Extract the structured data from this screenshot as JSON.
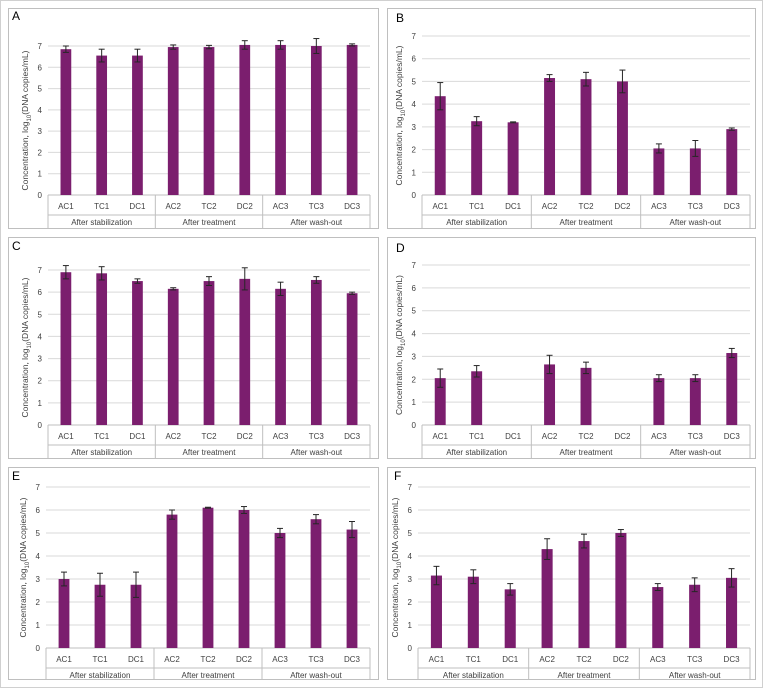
{
  "style": {
    "bar_color": "#7B1E6E",
    "grid_color": "#d9d9d9",
    "frame_color": "#bfbfbf"
  },
  "chart_data": [
    {
      "panel": "A",
      "type": "bar",
      "categories": [
        "AC1",
        "TC1",
        "DC1",
        "AC2",
        "TC2",
        "DC2",
        "AC3",
        "TC3",
        "DC3"
      ],
      "groups": [
        "After stabilization",
        "After treatment",
        "After wash-out"
      ],
      "values": [
        6.85,
        6.55,
        6.55,
        6.95,
        6.95,
        7.05,
        7.05,
        7.0,
        7.05
      ],
      "errors": [
        0.15,
        0.3,
        0.3,
        0.1,
        0.08,
        0.2,
        0.2,
        0.35,
        0.05
      ],
      "ylabel": "Concentration, log10(DNA copies/mL)",
      "ylim": [
        0,
        7
      ],
      "yticks": [
        0,
        1,
        2,
        3,
        4,
        5,
        6,
        7
      ],
      "grid": true
    },
    {
      "panel": "B",
      "type": "bar",
      "categories": [
        "AC1",
        "TC1",
        "DC1",
        "AC2",
        "TC2",
        "DC2",
        "AC3",
        "TC3",
        "DC3"
      ],
      "groups": [
        "After stabilization",
        "After treatment",
        "After wash-out"
      ],
      "values": [
        4.35,
        3.25,
        3.2,
        5.15,
        5.1,
        5.0,
        2.05,
        2.05,
        2.9
      ],
      "errors": [
        0.6,
        0.2,
        0.02,
        0.15,
        0.3,
        0.5,
        0.2,
        0.35,
        0.05
      ],
      "ylabel": "Concentration, log10(DNA copies/mL)",
      "ylim": [
        0,
        7
      ],
      "yticks": [
        0,
        1,
        2,
        3,
        4,
        5,
        6,
        7
      ],
      "grid": true
    },
    {
      "panel": "C",
      "type": "bar",
      "categories": [
        "AC1",
        "TC1",
        "DC1",
        "AC2",
        "TC2",
        "DC2",
        "AC3",
        "TC3",
        "DC3"
      ],
      "groups": [
        "After stabilization",
        "After treatment",
        "After wash-out"
      ],
      "values": [
        6.9,
        6.85,
        6.5,
        6.15,
        6.5,
        6.6,
        6.15,
        6.55,
        5.95
      ],
      "errors": [
        0.3,
        0.3,
        0.1,
        0.05,
        0.2,
        0.5,
        0.3,
        0.15,
        0.05
      ],
      "ylabel": "Concentration, log10(DNA copies/mL)",
      "ylim": [
        0,
        7
      ],
      "yticks": [
        0,
        1,
        2,
        3,
        4,
        5,
        6,
        7
      ],
      "grid": true
    },
    {
      "panel": "D",
      "type": "bar",
      "categories": [
        "AC1",
        "TC1",
        "DC1",
        "AC2",
        "TC2",
        "DC2",
        "AC3",
        "TC3",
        "DC3"
      ],
      "groups": [
        "After stabilization",
        "After treatment",
        "After wash-out"
      ],
      "values": [
        2.05,
        2.35,
        0,
        2.65,
        2.5,
        0,
        2.05,
        2.05,
        3.15
      ],
      "errors": [
        0.4,
        0.25,
        0,
        0.4,
        0.25,
        0,
        0.15,
        0.15,
        0.2
      ],
      "ylabel": "Concentration, log10(DNA copies/mL)",
      "ylim": [
        0,
        7
      ],
      "yticks": [
        0,
        1,
        2,
        3,
        4,
        5,
        6,
        7
      ],
      "grid": true
    },
    {
      "panel": "E",
      "type": "bar",
      "categories": [
        "AC1",
        "TC1",
        "DC1",
        "AC2",
        "TC2",
        "DC2",
        "AC3",
        "TC3",
        "DC3"
      ],
      "groups": [
        "After stabilization",
        "After treatment",
        "After wash-out"
      ],
      "values": [
        3.0,
        2.75,
        2.75,
        5.8,
        6.1,
        6.0,
        5.0,
        5.6,
        5.15
      ],
      "errors": [
        0.3,
        0.5,
        0.55,
        0.2,
        0.02,
        0.15,
        0.2,
        0.2,
        0.35
      ],
      "ylabel": "Concentration, log10(DNA copies/mL)",
      "ylim": [
        0,
        7
      ],
      "yticks": [
        0,
        1,
        2,
        3,
        4,
        5,
        6,
        7
      ],
      "grid": true
    },
    {
      "panel": "F",
      "type": "bar",
      "categories": [
        "AC1",
        "TC1",
        "DC1",
        "AC2",
        "TC2",
        "DC2",
        "AC3",
        "TC3",
        "DC3"
      ],
      "groups": [
        "After stabilization",
        "After treatment",
        "After wash-out"
      ],
      "values": [
        3.15,
        3.1,
        2.55,
        4.3,
        4.65,
        5.0,
        2.65,
        2.75,
        3.05
      ],
      "errors": [
        0.4,
        0.3,
        0.25,
        0.45,
        0.3,
        0.15,
        0.15,
        0.3,
        0.4
      ],
      "ylabel": "Concentration, log10(DNA copies/mL)",
      "ylim": [
        0,
        7
      ],
      "yticks": [
        0,
        1,
        2,
        3,
        4,
        5,
        6,
        7
      ],
      "grid": true
    }
  ]
}
